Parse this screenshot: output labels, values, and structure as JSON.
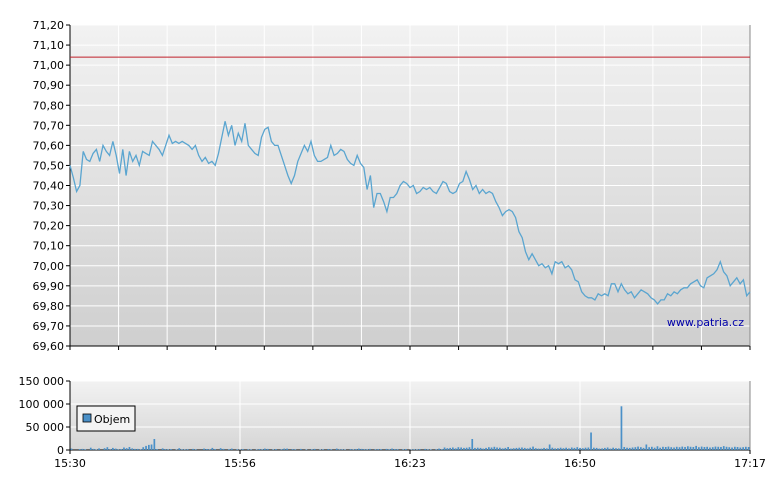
{
  "chart_data": [
    {
      "type": "line",
      "title": "",
      "xlabel": "",
      "ylabel": "",
      "ylim": [
        69.6,
        71.2
      ],
      "y_ticks": [
        "71,20",
        "71,10",
        "71,00",
        "70,90",
        "70,80",
        "70,70",
        "70,60",
        "70,50",
        "70,40",
        "70,30",
        "70,20",
        "70,10",
        "70,00",
        "69,90",
        "69,80",
        "69,70",
        "69,60"
      ],
      "reference_line": 71.04,
      "grid": true,
      "watermark": "www.patria.cz",
      "colors": {
        "line": "#5aa5d0",
        "reference": "#c0202a",
        "grid": "#ffffff"
      },
      "series": [
        {
          "values": [
            70.5,
            70.44,
            70.37,
            70.4,
            70.57,
            70.53,
            70.52,
            70.56,
            70.58,
            70.52,
            70.6,
            70.57,
            70.55,
            70.62,
            70.55,
            70.46,
            70.58,
            70.45,
            70.57,
            70.52,
            70.55,
            70.5,
            70.57,
            70.56,
            70.55,
            70.62,
            70.6,
            70.58,
            70.55,
            70.6,
            70.65,
            70.61,
            70.62,
            70.61,
            70.62,
            70.61,
            70.6,
            70.58,
            70.6,
            70.55,
            70.52,
            70.54,
            70.51,
            70.52,
            70.5,
            70.56,
            70.64,
            70.72,
            70.65,
            70.7,
            70.6,
            70.66,
            70.62,
            70.71,
            70.6,
            70.58,
            70.56,
            70.55,
            70.64,
            70.68,
            70.69,
            70.62,
            70.6,
            70.6,
            70.55,
            70.5,
            70.45,
            70.41,
            70.45,
            70.52,
            70.56,
            70.6,
            70.57,
            70.62,
            70.55,
            70.52,
            70.52,
            70.53,
            70.54,
            70.6,
            70.55,
            70.56,
            70.58,
            70.57,
            70.53,
            70.51,
            70.5,
            70.55,
            70.51,
            70.49,
            70.38,
            70.45,
            70.29,
            70.36,
            70.36,
            70.32,
            70.27,
            70.34,
            70.34,
            70.36,
            70.4,
            70.42,
            70.41,
            70.39,
            70.4,
            70.36,
            70.37,
            70.39,
            70.38,
            70.39,
            70.37,
            70.36,
            70.39,
            70.42,
            70.41,
            70.37,
            70.36,
            70.37,
            70.41,
            70.42,
            70.47,
            70.43,
            70.38,
            70.4,
            70.36,
            70.38,
            70.36,
            70.37,
            70.36,
            70.32,
            70.29,
            70.25,
            70.27,
            70.28,
            70.27,
            70.24,
            70.17,
            70.14,
            70.07,
            70.03,
            70.06,
            70.03,
            70.0,
            70.01,
            69.99,
            70.0,
            69.96,
            70.02,
            70.01,
            70.02,
            69.99,
            70.0,
            69.98,
            69.93,
            69.92,
            69.87,
            69.85,
            69.84,
            69.84,
            69.83,
            69.86,
            69.85,
            69.86,
            69.85,
            69.91,
            69.91,
            69.87,
            69.91,
            69.88,
            69.86,
            69.87,
            69.84,
            69.86,
            69.88,
            69.87,
            69.86,
            69.84,
            69.83,
            69.81,
            69.83,
            69.83,
            69.86,
            69.85,
            69.87,
            69.86,
            69.88,
            69.89,
            69.89,
            69.91,
            69.92,
            69.93,
            69.9,
            69.89,
            69.94,
            69.95,
            69.96,
            69.98,
            70.02,
            69.97,
            69.95,
            69.9,
            69.92,
            69.94,
            69.91,
            69.93,
            69.85,
            69.87
          ]
        }
      ]
    },
    {
      "type": "bar",
      "title": "",
      "xlabel": "",
      "ylabel": "",
      "ylim": [
        0,
        150000
      ],
      "y_ticks": [
        "150 000",
        "100 000",
        "50 000",
        "0"
      ],
      "x_ticks": [
        "15:30",
        "15:56",
        "16:23",
        "16:50",
        "17:17"
      ],
      "x_range_minutes": [
        0,
        107
      ],
      "legend": {
        "label": "Objem",
        "placement": "bottom-left"
      },
      "grid": true,
      "colors": {
        "bar": "#4a90c8"
      },
      "series": [
        {
          "name": "Objem",
          "values": [
            3000,
            0,
            0,
            2000,
            2500,
            1500,
            0,
            5000,
            2500,
            1000,
            3500,
            0,
            4000,
            6000,
            2000,
            4500,
            3000,
            1500,
            2000,
            5500,
            4000,
            6500,
            3500,
            2500,
            2500,
            1500,
            6000,
            9000,
            11000,
            12000,
            24000,
            2000,
            0,
            3500,
            2000,
            1500,
            2000,
            0,
            1000,
            4000,
            1500,
            1200,
            1800,
            0,
            2500,
            1500,
            0,
            0,
            3000,
            2200,
            1500,
            4500,
            2000,
            0,
            4000,
            2500,
            0,
            1500,
            3000,
            0,
            1500,
            800,
            2000,
            0,
            1500,
            1200,
            0,
            1000,
            2000,
            1500,
            3000,
            2500,
            0,
            1200,
            2000,
            0,
            1500,
            3000,
            3000,
            0,
            2000,
            1500,
            0,
            2500,
            0,
            1000,
            0,
            1500,
            2500,
            0,
            1000,
            1500,
            0,
            2200,
            1500,
            0,
            3000,
            1500,
            1500,
            1000,
            0,
            2000,
            1200,
            2000,
            3000,
            2500,
            1800,
            1500,
            2500,
            0,
            1500,
            2000,
            1800,
            0,
            2500,
            1500,
            3000,
            2000,
            1800,
            0,
            1500,
            2000,
            0,
            1000,
            1500,
            1200,
            2000,
            0,
            2500,
            1500,
            1200,
            0,
            1500,
            3000,
            1800,
            5500,
            4000,
            4500,
            5500,
            3500,
            6000,
            5500,
            4500,
            5000,
            6000,
            24000,
            4500,
            5000,
            4500,
            3000,
            4500,
            6000,
            5500,
            7000,
            5500,
            5000,
            3500,
            4500,
            6500,
            3000,
            4000,
            4500,
            5000,
            5500,
            4500,
            3500,
            5000,
            7500,
            4000,
            3000,
            3000,
            4500,
            3500,
            12000,
            5000,
            3500,
            4000,
            5000,
            4000,
            5000,
            3500,
            5500,
            4500,
            6000,
            4500,
            4000,
            5000,
            5500,
            38000,
            5000,
            4500,
            3000,
            3500,
            4500,
            5500,
            3000,
            5000,
            4000,
            3500,
            95000,
            6500,
            5000,
            4500,
            5500,
            6000,
            7500,
            6000,
            4500,
            12000,
            6000,
            7000,
            5000,
            8000,
            5000,
            7000,
            6500,
            7500,
            6000,
            5500,
            7000,
            6000,
            7500,
            6500,
            8000,
            7000,
            6500,
            9000,
            6000,
            7500,
            6500,
            7000,
            5500,
            6000,
            7500,
            7000,
            6500,
            8500,
            7000,
            6000,
            5500,
            7000,
            6500,
            5500,
            6000,
            7000,
            6500
          ]
        }
      ]
    }
  ]
}
